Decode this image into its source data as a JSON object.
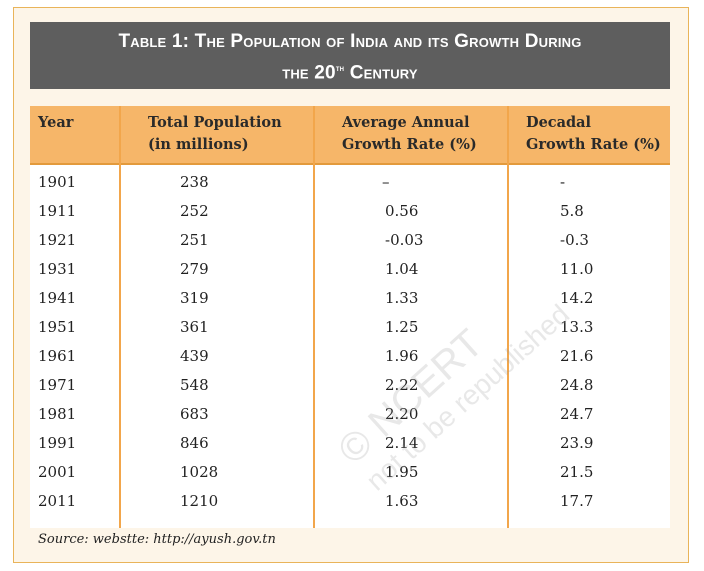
{
  "title": {
    "line1": "Table 1: The Population of India and its Growth During",
    "line2_prefix": "the 20",
    "line2_sup": "th",
    "line2_suffix": " Century"
  },
  "headers": {
    "year": "Year",
    "population_line1": "Total Population",
    "population_line2": "(in millions)",
    "annual_line1": "Average Annual",
    "annual_line2": "Growth Rate (%)",
    "decadal_line1": "Decadal",
    "decadal_line2": "Growth Rate (%)"
  },
  "rows": [
    {
      "year": "1901",
      "population": "238",
      "annual": "–",
      "decadal": "-"
    },
    {
      "year": "1911",
      "population": "252",
      "annual": "0.56",
      "decadal": "5.8"
    },
    {
      "year": "1921",
      "population": "251",
      "annual": "-0.03",
      "decadal": "-0.3"
    },
    {
      "year": "1931",
      "population": "279",
      "annual": "1.04",
      "decadal": "11.0"
    },
    {
      "year": "1941",
      "population": "319",
      "annual": "1.33",
      "decadal": "14.2"
    },
    {
      "year": "1951",
      "population": "361",
      "annual": "1.25",
      "decadal": "13.3"
    },
    {
      "year": "1961",
      "population": "439",
      "annual": "1.96",
      "decadal": "21.6"
    },
    {
      "year": "1971",
      "population": "548",
      "annual": "2.22",
      "decadal": "24.8"
    },
    {
      "year": "1981",
      "population": "683",
      "annual": "2.20",
      "decadal": "24.7"
    },
    {
      "year": "1991",
      "population": "846",
      "annual": "2.14",
      "decadal": "23.9"
    },
    {
      "year": "2001",
      "population": "1028",
      "annual": "1.95",
      "decadal": "21.5"
    },
    {
      "year": "2011",
      "population": "1210",
      "annual": "1.63",
      "decadal": "17.7"
    }
  ],
  "source": "Source: webstte: http://ayush.gov.tn",
  "watermark": {
    "line1": "© NCERT",
    "line2": "not to be republished"
  },
  "colors": {
    "header_bg": "#f6b669",
    "title_bg": "#5e5e5e",
    "frame_bg": "#fdf5e8"
  }
}
